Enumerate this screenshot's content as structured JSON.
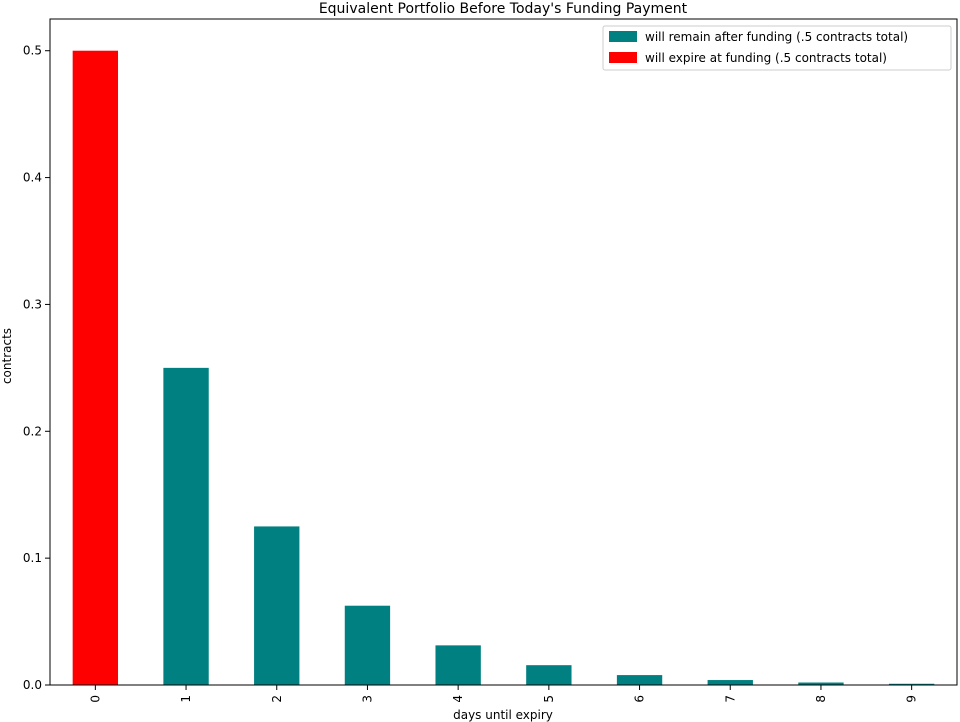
{
  "chart_data": {
    "type": "bar",
    "title": "Equivalent Portfolio Before Today's Funding Payment",
    "xlabel": "days until expiry",
    "ylabel": "contracts",
    "categories": [
      "0",
      "1",
      "2",
      "3",
      "4",
      "5",
      "6",
      "7",
      "8",
      "9"
    ],
    "series": [
      {
        "name": "will remain after funding (.5 contracts total)",
        "color": "#008080",
        "values": [
          0,
          0.25,
          0.125,
          0.0625,
          0.03125,
          0.015625,
          0.0078125,
          0.00390625,
          0.001953125,
          0.0009765625
        ]
      },
      {
        "name": "will expire at funding (.5 contracts total)",
        "color": "#ff0000",
        "values": [
          0.5,
          0,
          0,
          0,
          0,
          0,
          0,
          0,
          0,
          0
        ]
      }
    ],
    "ylim": [
      0,
      0.525
    ],
    "yticks": [
      0.0,
      0.1,
      0.2,
      0.3,
      0.4,
      0.5
    ],
    "ytick_labels": [
      "0.0",
      "0.1",
      "0.2",
      "0.3",
      "0.4",
      "0.5"
    ],
    "legend_position": "top-right",
    "grid": false
  }
}
